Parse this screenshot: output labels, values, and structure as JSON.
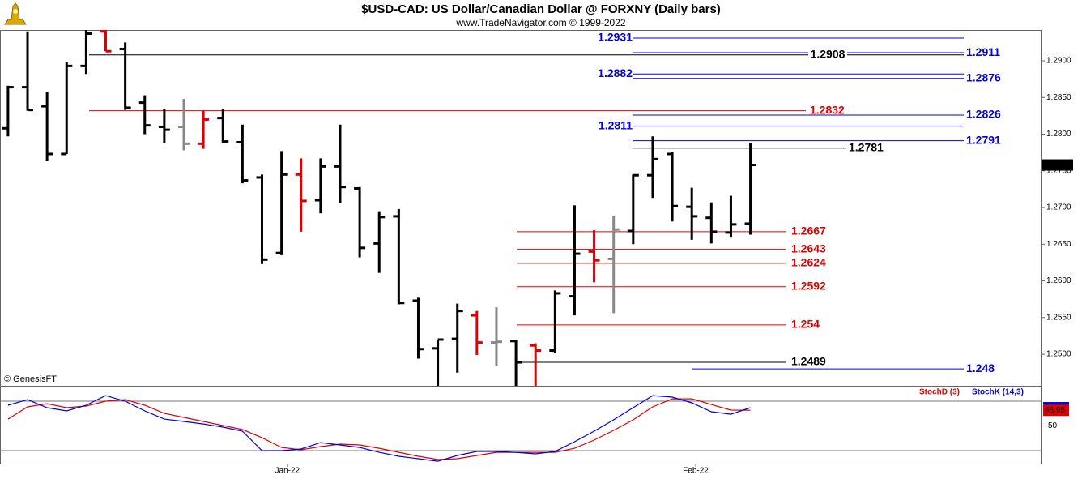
{
  "chart_data": [
    {
      "type": "ohlc",
      "title": "$USD-CAD:  US Dollar/Canadian Dollar @ FORXNY  (Daily bars)",
      "subtitle": "www.TradeNavigator.com © 1999-2022",
      "source_note": "© GenesisFT",
      "x": [
        0,
        1,
        2,
        3,
        4,
        5,
        6,
        7,
        8,
        9,
        10,
        11,
        12,
        13,
        14,
        15,
        16,
        17,
        18,
        19,
        20,
        21,
        22,
        23,
        24,
        25,
        26,
        27,
        28,
        29,
        30,
        31,
        32,
        33,
        34,
        35,
        36,
        37,
        38
      ],
      "open": [
        1.2808,
        1.2864,
        1.2838,
        1.2773,
        1.2893,
        1.294,
        1.2916,
        1.2843,
        1.281,
        1.281,
        1.2787,
        1.2822,
        1.2789,
        1.2741,
        1.2638,
        1.2745,
        1.271,
        1.2756,
        1.2726,
        1.2651,
        1.2688,
        1.2573,
        1.2508,
        1.2521,
        1.2553,
        1.2516,
        1.2518,
        1.2512,
        1.2505,
        1.2579,
        1.264,
        1.263,
        1.2668,
        1.2744,
        1.2773,
        1.2701,
        1.2686,
        1.2666,
        1.2678
      ],
      "high": [
        1.2866,
        1.294,
        1.2857,
        1.2898,
        1.2942,
        1.2942,
        1.2925,
        1.2853,
        1.2834,
        1.2848,
        1.2832,
        1.2834,
        1.2813,
        1.2745,
        1.2777,
        1.2767,
        1.2767,
        1.2813,
        1.2728,
        1.2695,
        1.2698,
        1.2577,
        1.252,
        1.2569,
        1.2559,
        1.2564,
        1.252,
        1.2515,
        1.2587,
        1.2703,
        1.2669,
        1.2688,
        1.2745,
        1.2797,
        1.2776,
        1.2727,
        1.2707,
        1.2716,
        1.2788
      ],
      "low": [
        1.2797,
        1.2832,
        1.2763,
        1.2773,
        1.2882,
        1.2913,
        1.2833,
        1.28,
        1.2788,
        1.2778,
        1.278,
        1.2788,
        1.2733,
        1.2623,
        1.2635,
        1.2667,
        1.2692,
        1.2706,
        1.2632,
        1.2611,
        1.2568,
        1.2494,
        1.2457,
        1.2475,
        1.2499,
        1.2484,
        1.2457,
        1.2457,
        1.2502,
        1.2553,
        1.2598,
        1.2556,
        1.265,
        1.2713,
        1.2681,
        1.2656,
        1.2651,
        1.2659,
        1.2663
      ],
      "close": [
        1.2864,
        1.2833,
        1.2773,
        1.2893,
        1.2937,
        1.2913,
        1.2836,
        1.2812,
        1.2806,
        1.2787,
        1.282,
        1.279,
        1.2737,
        1.2629,
        1.2745,
        1.2709,
        1.2756,
        1.2728,
        1.2645,
        1.2687,
        1.257,
        1.2507,
        1.252,
        1.2559,
        1.2516,
        1.2517,
        1.2489,
        1.2505,
        1.2583,
        1.2637,
        1.2628,
        1.267,
        1.2744,
        1.2766,
        1.2702,
        1.2688,
        1.2667,
        1.2677,
        1.2758
      ],
      "colors": [
        "#000",
        "#000",
        "#000",
        "#000",
        "#000",
        "#e00000",
        "#000",
        "#000",
        "#000",
        "#888",
        "#e00000",
        "#000",
        "#000",
        "#000",
        "#000",
        "#e00000",
        "#000",
        "#000",
        "#000",
        "#000",
        "#000",
        "#000",
        "#000",
        "#000",
        "#e00000",
        "#888",
        "#000",
        "#e00000",
        "#000",
        "#000",
        "#e00000",
        "#888",
        "#000",
        "#000",
        "#000",
        "#000",
        "#000",
        "#000",
        "#000"
      ],
      "xlim": [
        -0.41,
        52.9
      ],
      "ylim": [
        1.2457,
        1.2942
      ],
      "yticks": [
        {
          "value": 1.25,
          "label": "1.2500"
        },
        {
          "value": 1.255,
          "label": "1.2550"
        },
        {
          "value": 1.26,
          "label": "1.2600"
        },
        {
          "value": 1.265,
          "label": "1.2650"
        },
        {
          "value": 1.27,
          "label": "1.2700"
        },
        {
          "value": 1.275,
          "label": "1.2750"
        },
        {
          "value": 1.28,
          "label": "1.2800"
        },
        {
          "value": 1.285,
          "label": "1.2850"
        },
        {
          "value": 1.29,
          "label": "1.2900"
        }
      ],
      "levels": [
        {
          "value": 1.2931,
          "color": "#0000e0"
        },
        {
          "value": 1.2911,
          "color": "#0000e0"
        },
        {
          "value": 1.2908,
          "color": "#000000"
        },
        {
          "value": 1.2882,
          "color": "#0000e0"
        },
        {
          "value": 1.2876,
          "color": "#0000e0"
        },
        {
          "value": 1.2832,
          "color": "#e00000"
        },
        {
          "value": 1.2826,
          "color": "#0000e0"
        },
        {
          "value": 1.2811,
          "color": "#0000e0"
        },
        {
          "value": 1.2791,
          "color": "#0000e0"
        },
        {
          "value": 1.2781,
          "color": "#000000"
        },
        {
          "value": 1.2667,
          "color": "#e00000"
        },
        {
          "value": 1.2643,
          "color": "#e00000"
        },
        {
          "value": 1.2624,
          "color": "#e00000"
        },
        {
          "value": 1.2592,
          "color": "#e00000"
        },
        {
          "value": 1.254,
          "color": "#e00000"
        },
        {
          "value": 1.2489,
          "color": "#000000"
        },
        {
          "value": 1.248,
          "color": "#0000e0"
        }
      ]
    },
    {
      "type": "line",
      "x": [
        0,
        1,
        2,
        3,
        4,
        5,
        6,
        7,
        8,
        9,
        10,
        11,
        12,
        13,
        14,
        15,
        16,
        17,
        18,
        19,
        20,
        21,
        22,
        23,
        24,
        25,
        26,
        27,
        28,
        29,
        30,
        31,
        32,
        33,
        34,
        35,
        36,
        37,
        38
      ],
      "series": [
        {
          "name": "StochD (3)",
          "color": "#e00000",
          "values": [
            58.3,
            73.1,
            77.0,
            72.1,
            74.1,
            80.0,
            81.9,
            75.1,
            65.2,
            60.3,
            55.4,
            50.5,
            45.6,
            35.7,
            23.9,
            21.0,
            24.9,
            27.9,
            26.9,
            22.9,
            18.0,
            13.1,
            9.2,
            10.2,
            14.1,
            18.0,
            18.0,
            18.0,
            18.0,
            22.9,
            32.8,
            44.6,
            57.4,
            73.1,
            82.9,
            82.9,
            76.0,
            69.2,
            68.95
          ]
        },
        {
          "name": "StochK (14,3)",
          "color": "#0000e0",
          "values": [
            75.1,
            81.9,
            72.1,
            68.2,
            75.1,
            86.8,
            80.0,
            68.2,
            58.3,
            55.4,
            52.4,
            48.5,
            43.6,
            20.0,
            20.0,
            22.0,
            29.8,
            26.9,
            23.9,
            18.0,
            13.1,
            10.2,
            7.2,
            14.1,
            19.0,
            19.0,
            18.0,
            16.1,
            19.0,
            30.8,
            43.6,
            57.4,
            72.1,
            86.8,
            84.9,
            78.0,
            67.2,
            64.2,
            72.1
          ]
        }
      ],
      "xlim": [
        -0.41,
        52.9
      ],
      "ylim": [
        4.3,
        97.7
      ],
      "yticks": [
        50
      ],
      "levels": [
        20,
        80
      ],
      "xticks": [
        {
          "value": 14.3,
          "label": "Jan-22"
        },
        {
          "value": 35.2,
          "label": "Feb-22"
        }
      ]
    }
  ]
}
